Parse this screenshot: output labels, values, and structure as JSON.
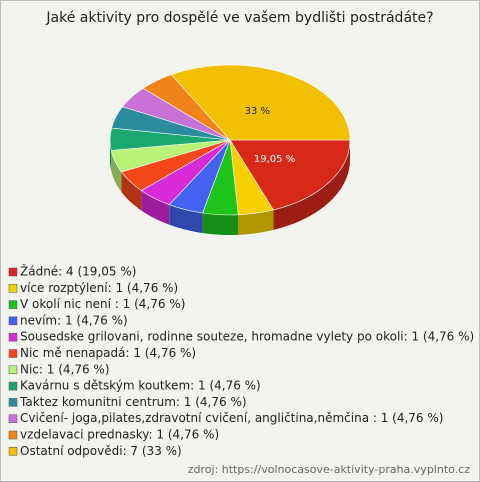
{
  "chart_data": {
    "type": "pie",
    "title": "Jaké aktivity pro dospělé ve vašem bydlišti postrádáte?",
    "categories": [
      "Žádné: 4 (19,05 %)",
      "více rozptýlení: 1 (4,76 %)",
      "V okolí nic není : 1 (4,76 %)",
      "nevím: 1 (4,76 %)",
      "Sousedske grilovani, rodinne souteze, hromadne vylety po okoli: 1 (4,76 %)",
      "Nic mě nenapadá: 1 (4,76 %)",
      "Nic: 1 (4,76 %)",
      "Kavárnu s dětským koutkem: 1 (4,76 %)",
      "Taktez komunitni centrum: 1 (4,76 %)",
      "Cvičení- joga,pilates,zdravotní cvičení, angličtina,němčina : 1 (4,76 %)",
      "vzdelavaci prednasky: 1 (4,76 %)",
      "Ostatní odpovědi: 7 (33 %)"
    ],
    "values": [
      19.05,
      4.76,
      4.76,
      4.76,
      4.76,
      4.76,
      4.76,
      4.76,
      4.76,
      4.76,
      4.76,
      33
    ],
    "value_labels": [
      "19,05 %",
      null,
      null,
      null,
      null,
      null,
      null,
      null,
      null,
      null,
      null,
      "33 %"
    ],
    "colors": [
      "#d8281a",
      "#f6d000",
      "#1ec41a",
      "#4262f2",
      "#d82ad8",
      "#f4481a",
      "#b8f276",
      "#1aa870",
      "#2a8c9c",
      "#c872d8",
      "#f08418",
      "#f2c000"
    ],
    "source": "zdroj: https://volnocasove-aktivity-praha.vyplnto.cz"
  }
}
